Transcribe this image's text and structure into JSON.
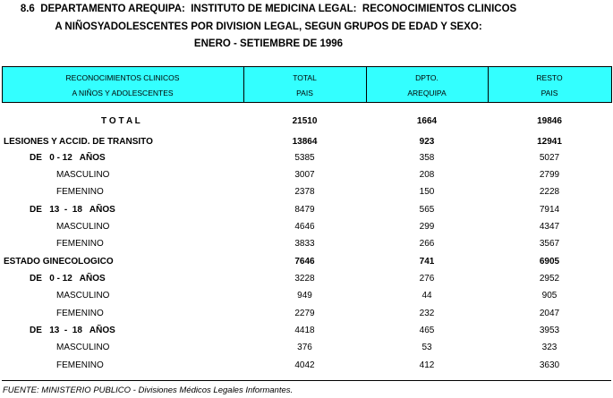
{
  "header": {
    "title": [
      "8.6  DEPARTAMENTO AREQUIPA:  INSTITUTO DE MEDICINA LEGAL:  RECONOCIMIENTOS CLINICOS",
      "A NIÑOSYADOLESCENTES POR DIVISION LEGAL, SEGUN GRUPOS DE EDAD Y SEXO:",
      "ENERO - SETIEMBRE DE 1996"
    ]
  },
  "table": {
    "columns": [
      [
        "RECONOCIMIENTOS CLINICOS",
        "A NIÑOS Y ADOLESCENTES"
      ],
      [
        "TOTAL",
        "PAIS"
      ],
      [
        "DPTO.",
        "AREQUIPA"
      ],
      [
        "RESTO",
        "PAIS"
      ]
    ],
    "rows": [
      [
        "T O T A L",
        21510,
        1664,
        19846
      ],
      [
        "LESIONES Y ACCID. DE TRANSITO",
        13864,
        923,
        12941
      ],
      [
        "DE   0 - 12   AÑOS",
        5385,
        358,
        5027
      ],
      [
        "MASCULINO",
        3007,
        208,
        2799
      ],
      [
        "FEMENINO",
        2378,
        150,
        2228
      ],
      [
        "DE   13  -  18   AÑOS",
        8479,
        565,
        7914
      ],
      [
        "MASCULINO",
        4646,
        299,
        4347
      ],
      [
        "FEMENINO",
        3833,
        266,
        3567
      ],
      [
        "ESTADO GINECOLOGICO",
        7646,
        741,
        6905
      ],
      [
        "DE   0 - 12   AÑOS",
        3228,
        276,
        2952
      ],
      [
        "MASCULINO",
        949,
        44,
        905
      ],
      [
        "FEMENINO",
        2279,
        232,
        2047
      ],
      [
        "DE   13  -  18   AÑOS",
        4418,
        465,
        3953
      ],
      [
        "MASCULINO",
        376,
        53,
        323
      ],
      [
        "FEMENINO",
        4042,
        412,
        3630
      ]
    ]
  },
  "footer": {
    "source": "FUENTE: MINISTERIO PUBLICO - Divisiones Médicos Legales Informantes."
  }
}
